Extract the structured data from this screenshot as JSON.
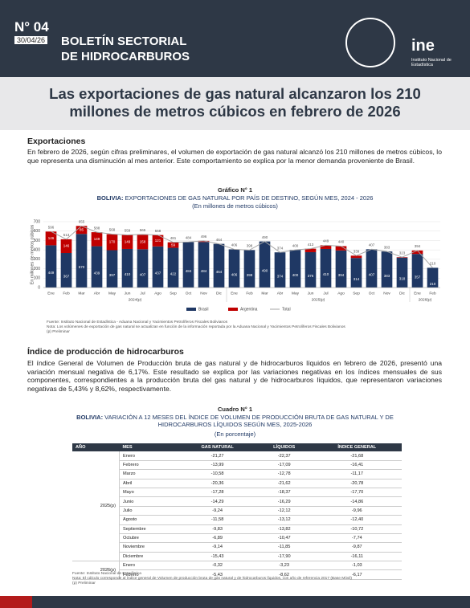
{
  "header": {
    "number": "N° 04",
    "date": "30/04/26",
    "title_line1": "BOLETÍN SECTORIAL",
    "title_line2": "DE HIDROCARBUROS",
    "logo": "ine",
    "logo_caption": "Instituto Nacional de Estadística"
  },
  "headline": "Las exportaciones de gas natural alcanzaron los 210 millones de metros cúbicos en febrero de 2026",
  "section1": {
    "heading": "Exportaciones",
    "text": "En febrero de 2026, según cifras preliminares, el volumen de exportación de gas natural alcanzó los 210 millones de metros cúbicos, lo que representa una disminución al mes anterior. Este comportamiento se explica por la menor demanda proveniente de Brasil."
  },
  "chart_data": {
    "type": "stacked_bar_line",
    "label": "Gráfico N° 1",
    "title_bold": "BOLIVIA:",
    "title": "EXPORTACIONES DE GAS NATURAL POR PAÍS DE DESTINO, SEGÚN MES, 2024 - 2026",
    "subtitle": "(En millones de metros cúbicos)",
    "y_label": "En millones de metros cúbicos",
    "categories": [
      "Ene",
      "Feb",
      "Mar",
      "Abr",
      "May",
      "Jun",
      "Jul",
      "Ago",
      "Sep",
      "Oct",
      "Nov",
      "Dic",
      "Ene",
      "Feb",
      "Mar",
      "Abr",
      "May",
      "Jun",
      "Jul",
      "Ago",
      "Sep",
      "Oct",
      "Nov",
      "Dic",
      "Ene",
      "Feb"
    ],
    "year_labels": [
      "2024(p)",
      "2025(p)",
      "2026(p)"
    ],
    "ylim": [
      0,
      700
    ],
    "yticks": [
      0,
      100,
      200,
      300,
      400,
      500,
      600,
      700
    ],
    "grid": true,
    "series": [
      {
        "name": "Brasil",
        "color": "#1f3864",
        "values": [
          449,
          367,
          570,
          439,
          397,
          410,
          407,
          437,
          422,
          484,
          484,
          464,
          406,
          398,
          490,
          374,
          400,
          376,
          410,
          394,
          314,
          407,
          383,
          318,
          357,
          210
        ]
      },
      {
        "name": "Argentina",
        "color": "#c00000",
        "values": [
          146,
          146,
          85,
          149,
          170,
          149,
          158,
          121,
          59,
          0,
          12,
          0,
          0,
          0,
          0,
          0,
          0,
          37,
          39,
          46,
          25,
          0,
          0,
          5,
          37,
          0
        ]
      },
      {
        "name": "Total",
        "color": "#a6a6a6",
        "values": [
          596,
          513,
          655,
          588,
          568,
          559,
          565,
          558,
          481,
          484,
          496,
          464,
          406,
          398,
          490,
          374,
          400,
          413,
          449,
          440,
          339,
          407,
          383,
          323,
          394,
          210
        ]
      }
    ],
    "source": "Fuente: Instituto Nacional de Estadística - Aduana Nacional y Yacimientos Petrolíferos Fiscales Bolivianos",
    "note": "Nota: Los volúmenes de exportación de gas natural se actualizan en función de la información reportada por la Aduana Nacional y Yacimientos Petrolíferos Fiscales Bolivianos",
    "prelim": "(p) Preliminar"
  },
  "section2": {
    "heading": "Índice de producción de hidrocarburos",
    "text": "El índice General de Volumen de Producción bruta de gas natural y de hidrocarburos líquidos en febrero de 2026, presentó una variación mensual negativa de 6,17%. Este resultado se explica por las variaciones negativas en los índices mensuales de sus componentes, correspondientes a la producción bruta del gas natural y de hidrocarburos líquidos, que representaron variaciones negativas de 5,43% y 8,62%, respectivamente."
  },
  "table": {
    "label": "Cuadro N° 1",
    "title_bold": "BOLIVIA:",
    "title": "VARIACIÓN A 12 MESES DEL ÍNDICE DE VOLUMEN DE PRODUCCIÓN BRUTA DE GAS NATURAL Y DE HIDROCARBUROS LÍQUIDOS SEGÚN MES, 2025-2026",
    "subtitle": "(En porcentaje)",
    "columns": [
      "AÑO",
      "MES",
      "GAS NATURAL",
      "LÍQUIDOS",
      "ÍNDICE  GENERAL"
    ],
    "groups": [
      {
        "year": "2025(p)",
        "rows": [
          [
            "Enero",
            "-21,27",
            "-22,37",
            "-21,68"
          ],
          [
            "Febrero",
            "-13,99",
            "-17,09",
            "-16,41"
          ],
          [
            "Marzo",
            "-10,58",
            "-12,78",
            "-11,17"
          ],
          [
            "Abril",
            "-20,36",
            "-21,62",
            "-20,78"
          ],
          [
            "Mayo",
            "-17,28",
            "-18,37",
            "-17,70"
          ],
          [
            "Junio",
            "-14,29",
            "-16,29",
            "-14,86"
          ],
          [
            "Julio",
            "-9,24",
            "-12,12",
            "-9,96"
          ],
          [
            "Agosto",
            "-11,58",
            "-13,12",
            "-12,40"
          ],
          [
            "Septiembre",
            "-9,83",
            "-13,82",
            "-10,72"
          ],
          [
            "Octubre",
            "-6,89",
            "-10,47",
            "-7,74"
          ],
          [
            "Noviembre",
            "-9,14",
            "-11,85",
            "-9,87"
          ],
          [
            "Diciembre",
            "-15,43",
            "-17,90",
            "-16,11"
          ]
        ]
      },
      {
        "year": "2026(p)",
        "rows": [
          [
            "Enero",
            "-0,32",
            "-3,23",
            "-1,03"
          ],
          [
            "Febrero",
            "-5,43",
            "-8,62",
            "-6,17"
          ]
        ]
      }
    ],
    "source": "Fuente: Instituto Nacional de Estadística",
    "note": "Nota: El cálculo corresponde al índice general de Volumen de producción bruta de gas natural y de hidrocarburos líquidos, con año de referencia 2017 (Base Móvil)",
    "prelim": "(p) Preliminar"
  }
}
